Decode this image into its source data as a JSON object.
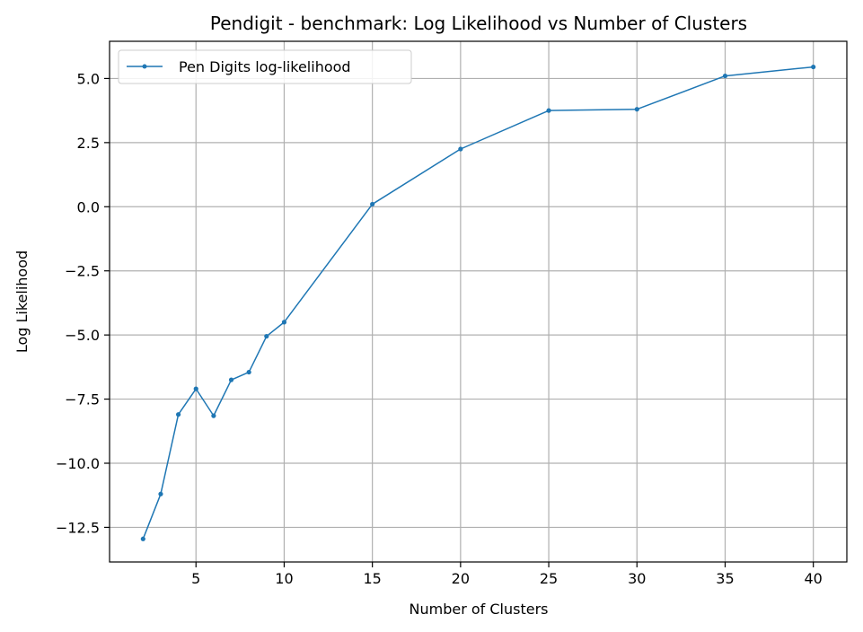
{
  "chart_data": {
    "type": "line",
    "title": "Pendigit - benchmark: Log Likelihood vs Number of Clusters",
    "xlabel": "Number of Clusters",
    "ylabel": "Log Likelihood",
    "grid": true,
    "xlim": [
      0.1,
      41.9
    ],
    "ylim": [
      -13.85,
      6.45
    ],
    "xticks": [
      5,
      10,
      15,
      20,
      25,
      30,
      35,
      40
    ],
    "xtick_labels": [
      "5",
      "10",
      "15",
      "20",
      "25",
      "30",
      "35",
      "40"
    ],
    "yticks": [
      5.0,
      2.5,
      0.0,
      -2.5,
      -5.0,
      -7.5,
      -10.0,
      -12.5
    ],
    "ytick_labels": [
      "5.0",
      "2.5",
      "0.0",
      "−2.5",
      "−5.0",
      "−7.5",
      "−10.0",
      "−12.5"
    ],
    "legend_position": "top-left",
    "series": [
      {
        "name": "Pen Digits log-likelihood",
        "color": "#1f77b4",
        "x": [
          2,
          3,
          4,
          5,
          6,
          7,
          8,
          9,
          10,
          15,
          20,
          25,
          30,
          35,
          40
        ],
        "y": [
          -12.95,
          -11.2,
          -8.1,
          -7.1,
          -8.15,
          -6.75,
          -6.45,
          -5.05,
          -4.5,
          0.1,
          2.25,
          3.75,
          3.8,
          5.1,
          5.45
        ]
      }
    ]
  }
}
